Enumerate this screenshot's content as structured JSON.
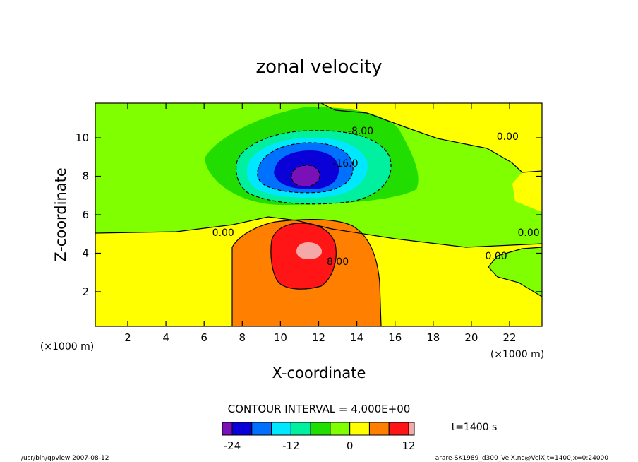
{
  "chart_data": {
    "type": "heatmap",
    "title": "zonal velocity",
    "xlabel": "X-coordinate",
    "ylabel": "Z-coordinate",
    "x_unit_label": "(×1000 m)",
    "y_unit_label": "(×1000 m)",
    "xlim": [
      0.3,
      23.7
    ],
    "ylim": [
      0.2,
      11.8
    ],
    "x_ticks": [
      2,
      4,
      6,
      8,
      10,
      12,
      14,
      16,
      18,
      20,
      22
    ],
    "y_ticks": [
      2,
      4,
      6,
      8,
      10
    ],
    "contour_interval_label": "CONTOUR INTERVAL = 4.000E+00",
    "time_label": "t=1400 s",
    "contour_labels": [
      {
        "text": "-8.00",
        "x": 14.2,
        "y": 10.3
      },
      {
        "text": "-16.0",
        "x": 13.4,
        "y": 8.6
      },
      {
        "text": "0.00",
        "x": 21.9,
        "y": 10.0
      },
      {
        "text": "0.00",
        "x": 7.0,
        "y": 5.0
      },
      {
        "text": "0.00",
        "x": 23.0,
        "y": 5.0
      },
      {
        "text": "0.00",
        "x": 21.3,
        "y": 3.8
      },
      {
        "text": "8.00",
        "x": 13.0,
        "y": 3.5
      }
    ],
    "colorbar": {
      "levels": [
        -28,
        -24,
        -20,
        -16,
        -12,
        -8,
        -4,
        0,
        4,
        8,
        12,
        16
      ],
      "tick_labels": [
        "-24",
        "-12",
        "0",
        "12"
      ],
      "tick_values": [
        -24,
        -12,
        0,
        12
      ],
      "colors": [
        "#7a10b8",
        "#0a00d8",
        "#0070ff",
        "#00e8ff",
        "#00f0a0",
        "#22dd00",
        "#80ff00",
        "#ffff00",
        "#ff7f00",
        "#ff1515",
        "#f5a8a8"
      ]
    }
  },
  "footer": {
    "left": "/usr/bin/gpview   2007-08-12",
    "right": "arare-SK1989_d300_VelX.nc@VelX,t=1400,x=0:24000"
  }
}
